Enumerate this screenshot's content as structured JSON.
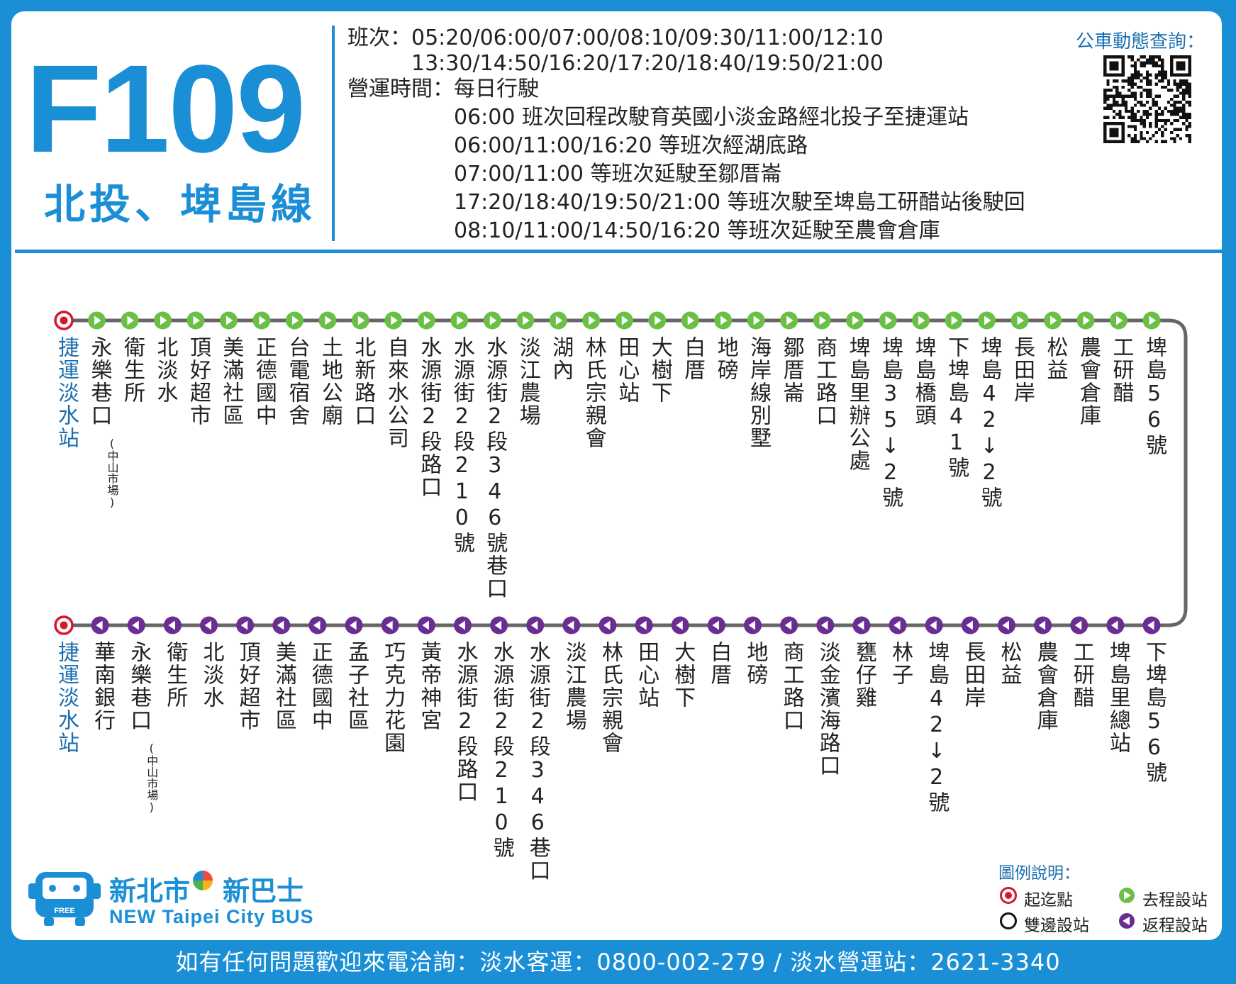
{
  "route": {
    "number": "F109",
    "name": "北投、埤島線"
  },
  "schedule": {
    "departures_label": "班次：",
    "departures_line1": "05:20/06:00/07:00/08:10/09:30/11:00/12:10",
    "departures_line2": "13:30/14:50/16:20/17:20/18:40/19:50/21:00",
    "operation_label": "營運時間：",
    "operation_value": "每日行駛",
    "notes": [
      "06:00 班次回程改駛育英國小淡金路經北投子至捷運站",
      "06:00/11:00/16:20 等班次經湖底路",
      "07:00/11:00 等班次延駛至鄒厝崙",
      "17:20/18:40/19:50/21:00 等班次駛至埤島工研醋站後駛回",
      "08:10/11:00/14:50/16:20 等班次延駛至農會倉庫"
    ]
  },
  "qr": {
    "label": "公車動態查詢："
  },
  "outbound": {
    "stops": [
      {
        "name": "捷運淡水站",
        "type": "terminal"
      },
      {
        "name": "永樂巷口",
        "note": "(中山市場)"
      },
      {
        "name": "衛生所"
      },
      {
        "name": "北淡水"
      },
      {
        "name": "頂好超市"
      },
      {
        "name": "美滿社區"
      },
      {
        "name": "正德國中"
      },
      {
        "name": "台電宿舍"
      },
      {
        "name": "土地公廟"
      },
      {
        "name": "北新路口"
      },
      {
        "name": "自來水公司"
      },
      {
        "name": "水源街2段路口"
      },
      {
        "name": "水源街2段210號"
      },
      {
        "name": "水源街2段346號巷口"
      },
      {
        "name": "淡江農場"
      },
      {
        "name": "湖內"
      },
      {
        "name": "林氏宗親會"
      },
      {
        "name": "田心站"
      },
      {
        "name": "大樹下"
      },
      {
        "name": "白厝"
      },
      {
        "name": "地磅"
      },
      {
        "name": "海岸線別墅"
      },
      {
        "name": "鄒厝崙"
      },
      {
        "name": "商工路口"
      },
      {
        "name": "埤島里辦公處"
      },
      {
        "name": "埤島35↓2號"
      },
      {
        "name": "埤島橋頭"
      },
      {
        "name": "下埤島41號"
      },
      {
        "name": "埤島42↓2號"
      },
      {
        "name": "長田岸"
      },
      {
        "name": "松益"
      },
      {
        "name": "農會倉庫"
      },
      {
        "name": "工研醋"
      },
      {
        "name": "埤島56號"
      }
    ]
  },
  "return": {
    "stops": [
      {
        "name": "捷運淡水站",
        "type": "terminal"
      },
      {
        "name": "華南銀行"
      },
      {
        "name": "永樂巷口",
        "note": "(中山市場)"
      },
      {
        "name": "衛生所"
      },
      {
        "name": "北淡水"
      },
      {
        "name": "頂好超市"
      },
      {
        "name": "美滿社區"
      },
      {
        "name": "正德國中"
      },
      {
        "name": "孟子社區"
      },
      {
        "name": "巧克力花園"
      },
      {
        "name": "黃帝神宮"
      },
      {
        "name": "水源街2段路口"
      },
      {
        "name": "水源街2段210號"
      },
      {
        "name": "水源街2段346巷口"
      },
      {
        "name": "淡江農場"
      },
      {
        "name": "林氏宗親會"
      },
      {
        "name": "田心站"
      },
      {
        "name": "大樹下"
      },
      {
        "name": "白厝"
      },
      {
        "name": "地磅"
      },
      {
        "name": "商工路口"
      },
      {
        "name": "淡金濱海路口"
      },
      {
        "name": "甕仔雞"
      },
      {
        "name": "林子"
      },
      {
        "name": "埤島42↓2號"
      },
      {
        "name": "長田岸"
      },
      {
        "name": "松益"
      },
      {
        "name": "農會倉庫"
      },
      {
        "name": "工研醋"
      },
      {
        "name": "埤島里總站"
      },
      {
        "name": "下埤島56號"
      }
    ]
  },
  "brand": {
    "name_part1": "新北市",
    "name_part2": "新巴士",
    "english": "NEW Taipei City BUS",
    "bus_badge": "FREE"
  },
  "legend": {
    "title": "圖例說明：",
    "terminal": "起迄點",
    "outbound": "去程設站",
    "both": "雙邊設站",
    "return": "返程設站"
  },
  "colors": {
    "brand_blue": "#1b8fd6",
    "outbound_green": "#6abf45",
    "return_purple": "#6a2d91",
    "terminal_red": "#d6182b",
    "line_gray": "#666666"
  },
  "footer": {
    "text": "如有任何問題歡迎來電洽詢：淡水客運：0800-002-279 / 淡水營運站：2621-3340"
  }
}
